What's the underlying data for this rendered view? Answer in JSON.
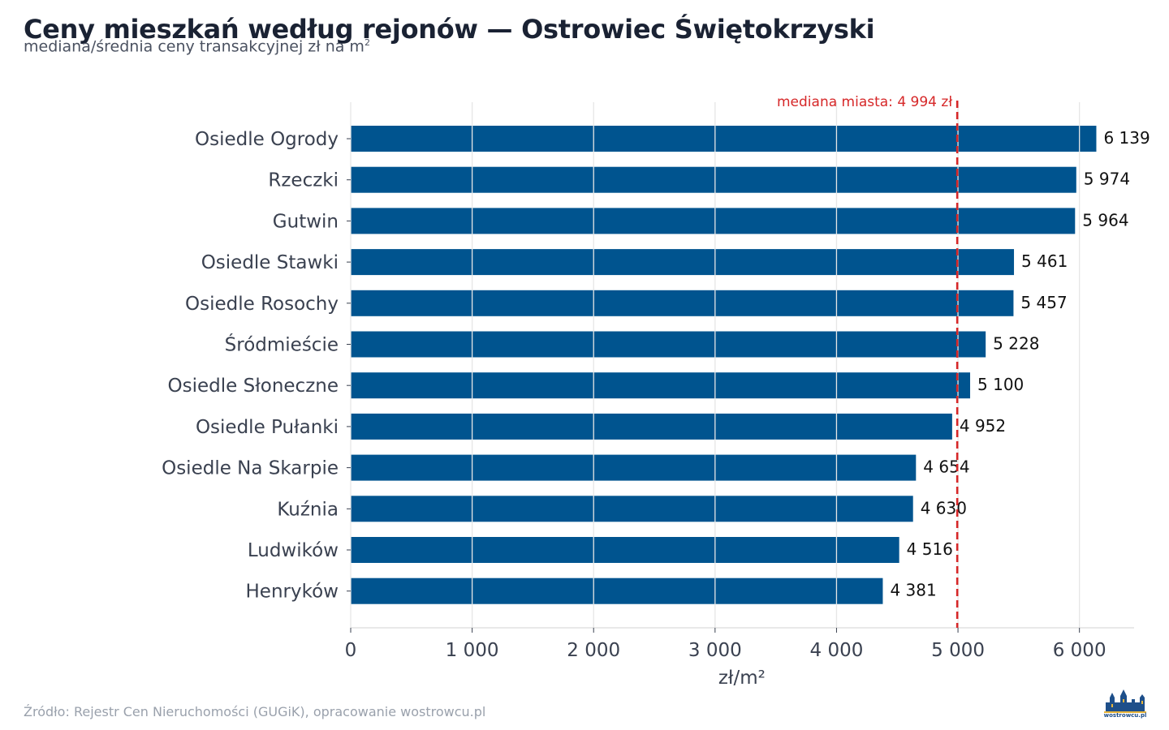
{
  "header": {
    "title": "Ceny mieszkań według rejonów — Ostrowiec Świętokrzyski",
    "subtitle": "mediana/średnia ceny transakcyjnej zł na m",
    "subtitle_sup": "2"
  },
  "footer": {
    "source": "Źródło: Rejestr Cen Nieruchomości (GUGiK), opracowanie wostrowcu.pl",
    "logo_text": "wostrowcu.pl"
  },
  "colors": {
    "bar": "#00548f",
    "reference_line": "#d62728",
    "grid": "#e6e6e6"
  },
  "chart_data": {
    "type": "bar",
    "orientation": "horizontal",
    "categories": [
      "Osiedle Ogrody",
      "Rzeczki",
      "Gutwin",
      "Osiedle Stawki",
      "Osiedle Rosochy",
      "Śródmieście",
      "Osiedle Słoneczne",
      "Osiedle Pułanki",
      "Osiedle Na Skarpie",
      "Kuźnia",
      "Ludwików",
      "Henryków"
    ],
    "values": [
      6139,
      5974,
      5964,
      5461,
      5457,
      5228,
      5100,
      4952,
      4654,
      4630,
      4516,
      4381
    ],
    "value_labels": [
      "6 139",
      "5 974",
      "5 964",
      "5 461",
      "5 457",
      "5 228",
      "5 100",
      "4 952",
      "4 654",
      "4 630",
      "4 516",
      "4 381"
    ],
    "xlabel": "zł/m²",
    "ylabel": "",
    "xlim": [
      0,
      6450
    ],
    "xticks": [
      0,
      1000,
      2000,
      3000,
      4000,
      5000,
      6000
    ],
    "xtick_labels": [
      "0",
      "1 000",
      "2 000",
      "3 000",
      "4 000",
      "5 000",
      "6 000"
    ],
    "reference_line": {
      "value": 4994,
      "label": "mediana miasta: 4 994 zł",
      "style": "dashed"
    },
    "grid": true,
    "legend": "none"
  }
}
